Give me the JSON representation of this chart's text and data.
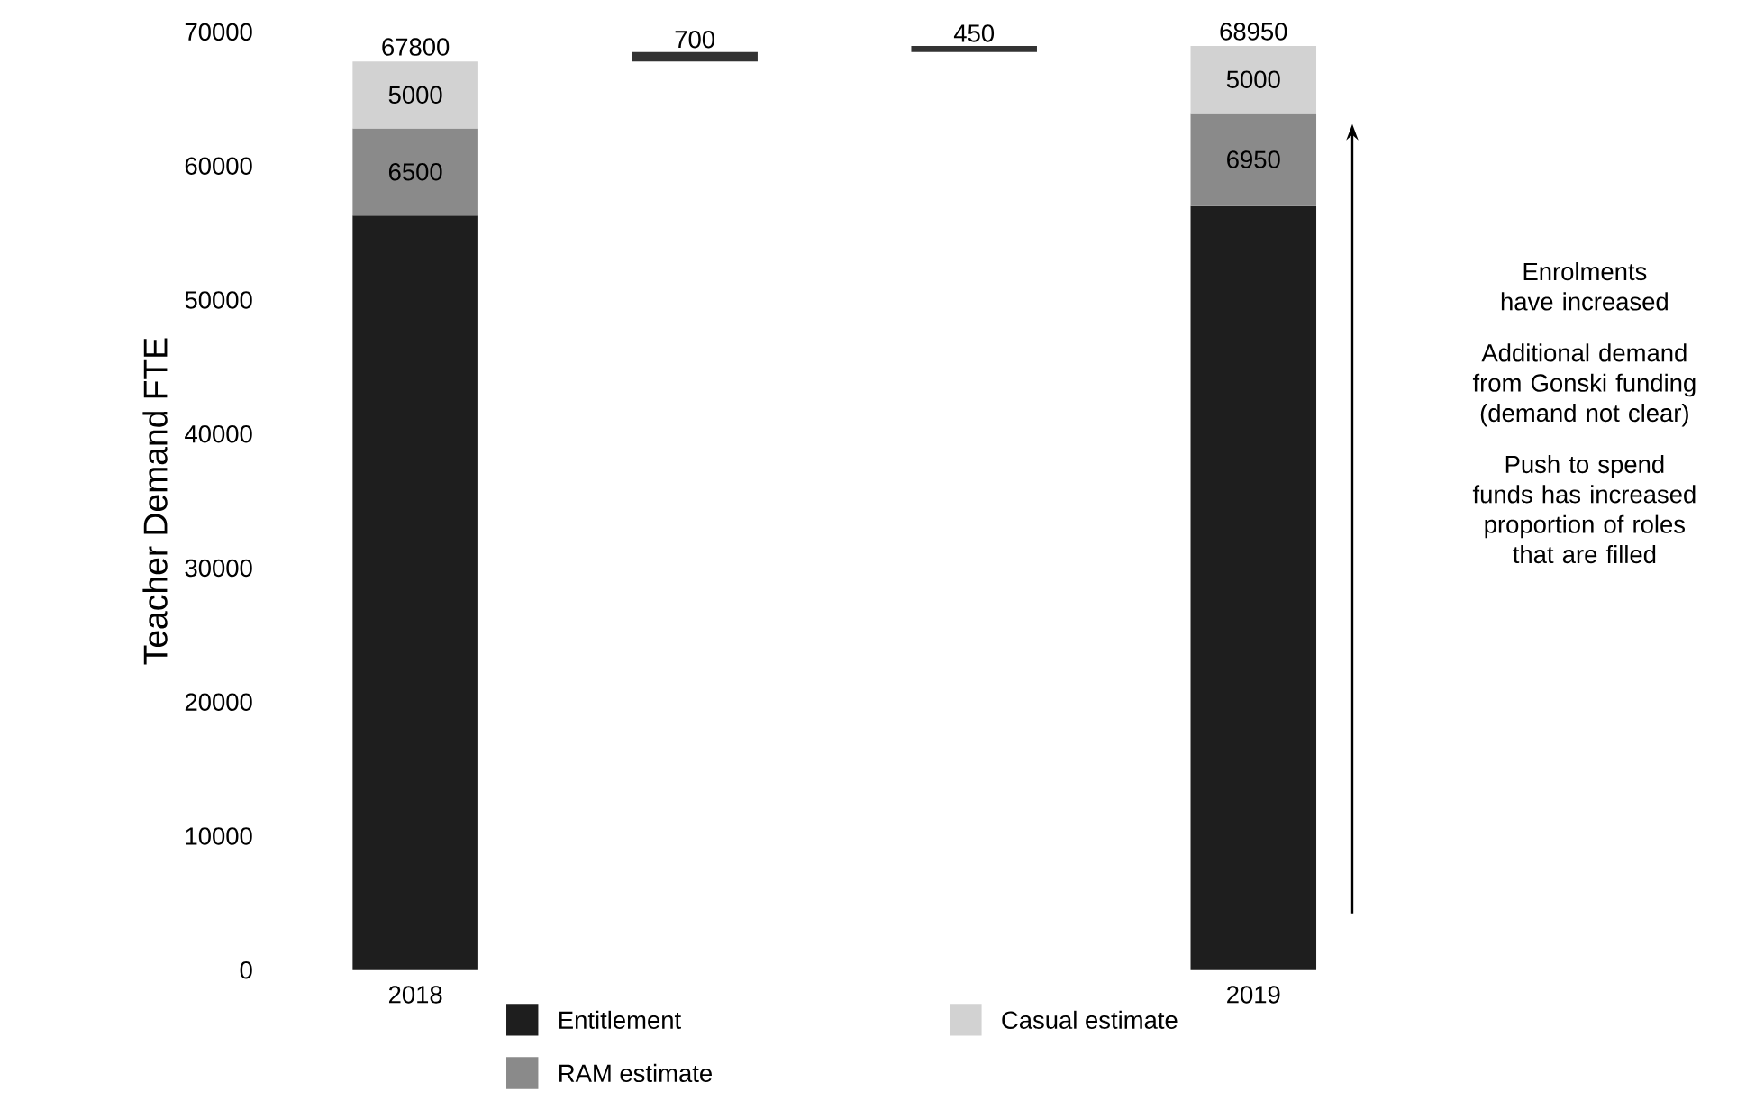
{
  "chart_data": {
    "type": "bar",
    "stacked": true,
    "categories": [
      "2018",
      null,
      null,
      "2019"
    ],
    "ylabel": "Teacher Demand FTE",
    "ylim": [
      0,
      70000
    ],
    "yticks": [
      0,
      10000,
      20000,
      30000,
      40000,
      50000,
      60000,
      70000
    ],
    "series": [
      {
        "name": "Entitlement",
        "color": "#1e1e1e",
        "values": [
          56300,
          null,
          null,
          57000
        ]
      },
      {
        "name": "RAM estimate",
        "color": "#8a8a8a",
        "values": [
          6500,
          null,
          null,
          6950
        ],
        "value_labels": [
          "6500",
          null,
          null,
          "6950"
        ]
      },
      {
        "name": "Casual estimate",
        "color": "#d2d2d2",
        "values": [
          5000,
          null,
          null,
          5000
        ],
        "value_labels": [
          "5000",
          null,
          null,
          "5000"
        ]
      },
      {
        "color": "#333333",
        "values": [
          null,
          700,
          450,
          null
        ],
        "base": [
          null,
          67800,
          68500,
          null
        ],
        "value_labels": [
          null,
          "700",
          "450",
          null
        ]
      }
    ],
    "totals": [
      "67800",
      null,
      null,
      "68950"
    ],
    "legend": "bottom",
    "annotations": [
      "Enrolments have increased",
      "Additional demand from Gonski funding (demand not clear)",
      "Push to spend funds has increased proportion of roles that are filled"
    ]
  }
}
